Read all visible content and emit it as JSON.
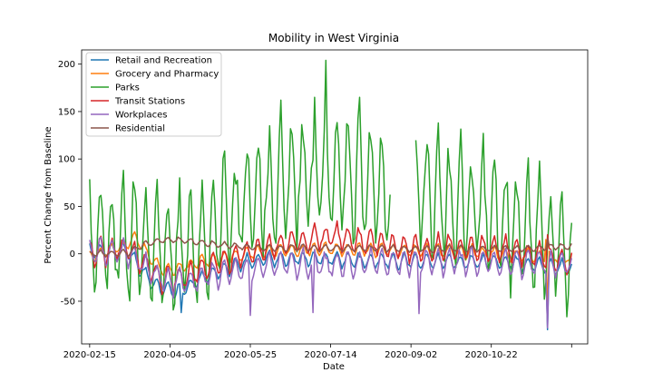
{
  "chart_data": {
    "type": "line",
    "title": "Mobility in West Virginia",
    "xlabel": "Date",
    "ylabel": "Percent Change from Baseline",
    "x_start": "2020-02-15",
    "x_end": "2020-12-11",
    "xlim": [
      "2020-02-10",
      "2020-12-21"
    ],
    "ylim": [
      -95,
      215
    ],
    "x_ticks": [
      "2020-02-15",
      "2020-04-05",
      "2020-05-25",
      "2020-07-14",
      "2020-09-02",
      "2020-10-22",
      ""
    ],
    "y_ticks": [
      -50,
      0,
      50,
      100,
      150,
      200
    ],
    "legend_position": "top-left",
    "grid": false,
    "series": [
      {
        "name": "Retail and Recreation",
        "color": "#1f77b4",
        "keypoints": [
          [
            "2020-02-15",
            2
          ],
          [
            "2020-03-10",
            3
          ],
          [
            "2020-03-20",
            -20
          ],
          [
            "2020-03-28",
            -35
          ],
          [
            "2020-04-05",
            -38
          ],
          [
            "2020-04-12",
            -42
          ],
          [
            "2020-04-20",
            -30
          ],
          [
            "2020-05-01",
            -22
          ],
          [
            "2020-05-15",
            -12
          ],
          [
            "2020-06-01",
            -5
          ],
          [
            "2020-07-01",
            -5
          ],
          [
            "2020-08-01",
            -7
          ],
          [
            "2020-09-01",
            -8
          ],
          [
            "2020-10-01",
            -8
          ],
          [
            "2020-11-01",
            -9
          ],
          [
            "2020-12-11",
            -15
          ]
        ],
        "weekly_amplitude": 7,
        "spikes": [
          [
            "2020-04-12",
            -62
          ],
          [
            "2020-11-26",
            -80
          ]
        ]
      },
      {
        "name": "Grocery and Pharmacy",
        "color": "#ff7f0e",
        "keypoints": [
          [
            "2020-02-15",
            -2
          ],
          [
            "2020-03-08",
            8
          ],
          [
            "2020-03-14",
            18
          ],
          [
            "2020-03-22",
            0
          ],
          [
            "2020-04-01",
            -18
          ],
          [
            "2020-04-12",
            -15
          ],
          [
            "2020-04-25",
            -8
          ],
          [
            "2020-05-15",
            -2
          ],
          [
            "2020-06-01",
            2
          ],
          [
            "2020-07-01",
            5
          ],
          [
            "2020-08-01",
            4
          ],
          [
            "2020-09-01",
            3
          ],
          [
            "2020-10-01",
            2
          ],
          [
            "2020-11-01",
            0
          ],
          [
            "2020-12-11",
            -5
          ]
        ],
        "weekly_amplitude": 6,
        "spikes": [
          [
            "2020-11-25",
            15
          ],
          [
            "2020-11-26",
            -60
          ]
        ]
      },
      {
        "name": "Parks",
        "color": "#2ca02c",
        "keypoints": [
          [
            "2020-02-15",
            15
          ],
          [
            "2020-03-01",
            15
          ],
          [
            "2020-03-20",
            10
          ],
          [
            "2020-04-05",
            5
          ],
          [
            "2020-04-25",
            10
          ],
          [
            "2020-05-20",
            55
          ],
          [
            "2020-06-15",
            75
          ],
          [
            "2020-07-14",
            85
          ],
          [
            "2020-08-05",
            80
          ],
          [
            "2020-08-20",
            60
          ],
          [
            "2020-09-10",
            65
          ],
          [
            "2020-10-01",
            55
          ],
          [
            "2020-10-20",
            45
          ],
          [
            "2020-11-10",
            25
          ],
          [
            "2020-12-11",
            10
          ]
        ],
        "weekly_amplitude": 55,
        "spikes": [
          [
            "2020-03-07",
            88
          ],
          [
            "2020-07-11",
            204
          ],
          [
            "2020-07-04",
            165
          ],
          [
            "2020-06-13",
            162
          ],
          [
            "2020-08-01",
            165
          ],
          [
            "2020-09-19",
            138
          ],
          [
            "2020-10-17",
            127
          ]
        ],
        "gaps": [
          [
            "2020-08-21",
            "2020-08-29"
          ],
          [
            "2020-08-31",
            "2020-09-04"
          ]
        ]
      },
      {
        "name": "Transit Stations",
        "color": "#d62728",
        "keypoints": [
          [
            "2020-02-15",
            3
          ],
          [
            "2020-03-10",
            5
          ],
          [
            "2020-03-20",
            -10
          ],
          [
            "2020-04-01",
            -28
          ],
          [
            "2020-04-15",
            -25
          ],
          [
            "2020-05-01",
            -12
          ],
          [
            "2020-05-25",
            2
          ],
          [
            "2020-06-20",
            12
          ],
          [
            "2020-07-14",
            18
          ],
          [
            "2020-08-10",
            12
          ],
          [
            "2020-09-01",
            5
          ],
          [
            "2020-10-01",
            6
          ],
          [
            "2020-11-01",
            5
          ],
          [
            "2020-12-11",
            -10
          ]
        ],
        "weekly_amplitude": 12,
        "spikes": [
          [
            "2020-11-26",
            20
          ]
        ]
      },
      {
        "name": "Workplaces",
        "color": "#9467bd",
        "keypoints": [
          [
            "2020-02-15",
            2
          ],
          [
            "2020-03-10",
            2
          ],
          [
            "2020-03-20",
            -15
          ],
          [
            "2020-04-01",
            -28
          ],
          [
            "2020-04-15",
            -30
          ],
          [
            "2020-05-01",
            -22
          ],
          [
            "2020-06-01",
            -12
          ],
          [
            "2020-07-01",
            -10
          ],
          [
            "2020-08-01",
            -10
          ],
          [
            "2020-09-01",
            -8
          ],
          [
            "2020-10-01",
            -8
          ],
          [
            "2020-11-01",
            -9
          ],
          [
            "2020-12-11",
            -12
          ]
        ],
        "weekly_amplitude": 12,
        "spikes": [
          [
            "2020-05-25",
            -65
          ],
          [
            "2020-07-03",
            -62
          ],
          [
            "2020-09-07",
            -63
          ],
          [
            "2020-11-26",
            -78
          ]
        ]
      },
      {
        "name": "Residential",
        "color": "#8c564b",
        "keypoints": [
          [
            "2020-02-15",
            0
          ],
          [
            "2020-03-10",
            1
          ],
          [
            "2020-03-20",
            10
          ],
          [
            "2020-04-01",
            15
          ],
          [
            "2020-04-15",
            14
          ],
          [
            "2020-05-01",
            10
          ],
          [
            "2020-06-01",
            6
          ],
          [
            "2020-07-01",
            6
          ],
          [
            "2020-08-01",
            6
          ],
          [
            "2020-09-01",
            5
          ],
          [
            "2020-10-01",
            5
          ],
          [
            "2020-11-01",
            5
          ],
          [
            "2020-12-11",
            8
          ]
        ],
        "weekly_amplitude": 3,
        "spikes": [
          [
            "2020-11-26",
            16
          ]
        ]
      }
    ]
  }
}
